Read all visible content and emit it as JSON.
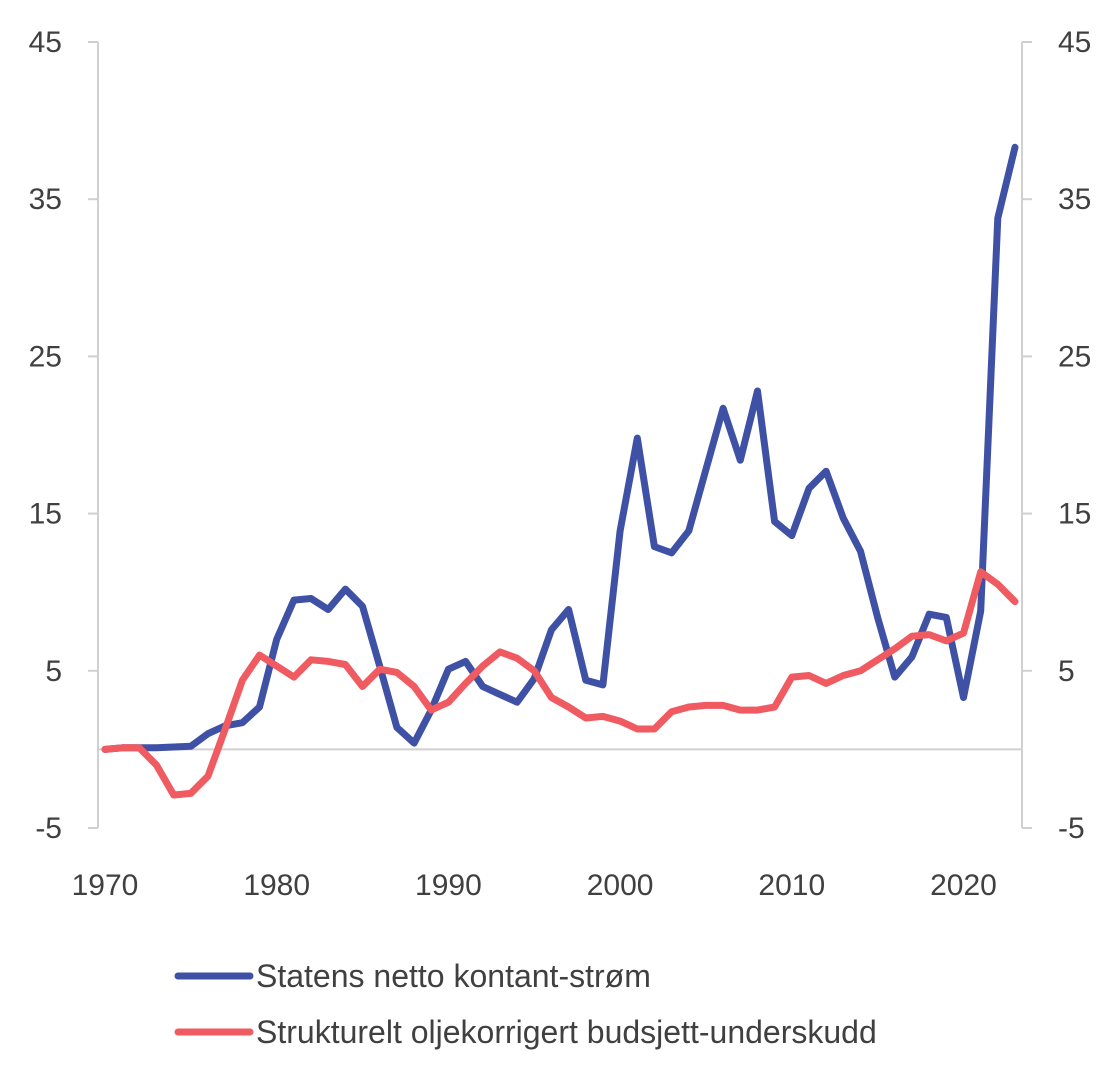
{
  "chart_data": {
    "type": "line",
    "title": "",
    "xlabel": "",
    "ylabel": "",
    "ylim": [
      -5,
      45
    ],
    "y_ticks": [
      "-5",
      "5",
      "15",
      "25",
      "35",
      "45"
    ],
    "y_tick_values": [
      -5,
      5,
      15,
      25,
      35,
      45
    ],
    "x_ticks": [
      "1970",
      "1980",
      "1990",
      "2000",
      "2010",
      "2020"
    ],
    "x_tick_values": [
      1970,
      1980,
      1990,
      2000,
      2010,
      2020
    ],
    "xlim": [
      1970,
      2023
    ],
    "legend_position": "bottom",
    "x": [
      1970,
      1971,
      1972,
      1973,
      1974,
      1975,
      1976,
      1977,
      1978,
      1979,
      1980,
      1981,
      1982,
      1983,
      1984,
      1985,
      1986,
      1987,
      1988,
      1989,
      1990,
      1991,
      1992,
      1993,
      1994,
      1995,
      1996,
      1997,
      1998,
      1999,
      2000,
      2001,
      2002,
      2003,
      2004,
      2005,
      2006,
      2007,
      2008,
      2009,
      2010,
      2011,
      2012,
      2013,
      2014,
      2015,
      2016,
      2017,
      2018,
      2019,
      2020,
      2021,
      2022,
      2023
    ],
    "series": [
      {
        "name": "Statens netto kontant-strøm",
        "color": "#3f51a5",
        "values": [
          0.0,
          0.1,
          0.1,
          0.1,
          0.15,
          0.2,
          1.0,
          1.5,
          1.7,
          2.7,
          7.0,
          9.5,
          9.6,
          8.9,
          10.2,
          9.1,
          5.3,
          1.4,
          0.4,
          2.5,
          5.1,
          5.6,
          4.0,
          3.5,
          3.0,
          4.5,
          7.6,
          8.9,
          4.4,
          4.1,
          13.9,
          19.8,
          12.9,
          12.5,
          13.9,
          17.8,
          21.7,
          18.4,
          22.8,
          14.5,
          13.6,
          16.6,
          17.7,
          14.7,
          12.6,
          8.4,
          4.6,
          5.9,
          8.6,
          8.4,
          3.3,
          8.8,
          33.8,
          38.3
        ],
        "markers": false
      },
      {
        "name": "Strukturelt oljekorrigert budsjett-underskudd",
        "color": "#f05a61",
        "values": [
          0.0,
          0.1,
          0.1,
          -1.0,
          -2.9,
          -2.8,
          -1.7,
          1.3,
          4.4,
          6.0,
          5.3,
          4.6,
          5.7,
          5.6,
          5.4,
          4.0,
          5.1,
          4.9,
          4.0,
          2.5,
          3.0,
          4.2,
          5.3,
          6.2,
          5.8,
          5.0,
          3.3,
          2.7,
          2.0,
          2.1,
          1.8,
          1.3,
          1.3,
          2.4,
          2.7,
          2.8,
          2.8,
          2.5,
          2.5,
          2.7,
          4.6,
          4.7,
          4.2,
          4.7,
          5.0,
          5.7,
          6.4,
          7.2,
          7.3,
          6.9,
          7.4,
          11.3,
          10.5,
          9.4
        ],
        "markers": false
      }
    ]
  }
}
